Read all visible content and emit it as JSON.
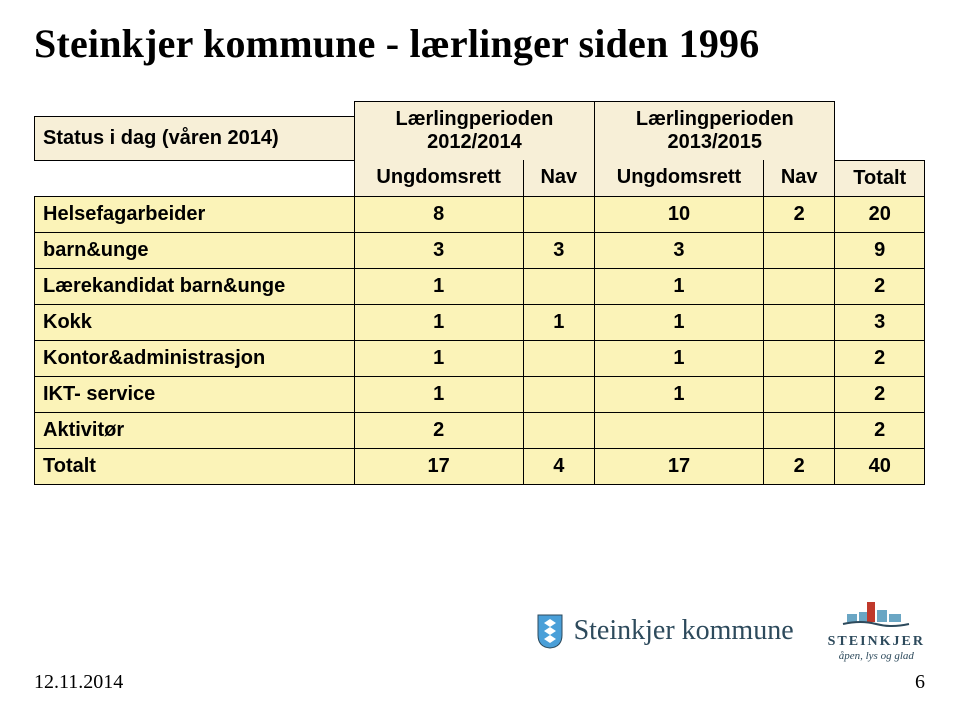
{
  "colors": {
    "header_bg": "#f7efd7",
    "data_bg": "#fbf3b8",
    "border": "#000000",
    "text": "#000000",
    "logo_text": "#2d4a5c",
    "shield_blue": "#4a9fd8",
    "shield_white": "#ffffff"
  },
  "title": "Steinkjer kommune - lærlinger siden 1996",
  "table": {
    "row_header_label": "Status i dag (våren 2014)",
    "period_a": "Lærlingperioden 2012/2014",
    "period_b": "Lærlingperioden 2013/2015",
    "sub_a1": "Ungdomsrett",
    "sub_a2": "Nav",
    "sub_b1": "Ungdomsrett",
    "sub_b2": "Nav",
    "total_col": "Totalt",
    "rows": [
      {
        "label": "Helsefagarbeider",
        "a1": "8",
        "a2": "",
        "b1": "10",
        "b2": "2",
        "tot": "20"
      },
      {
        "label": "barn&unge",
        "a1": "3",
        "a2": "3",
        "b1": "3",
        "b2": "",
        "tot": "9"
      },
      {
        "label": "Lærekandidat barn&unge",
        "a1": "1",
        "a2": "",
        "b1": "1",
        "b2": "",
        "tot": "2"
      },
      {
        "label": "Kokk",
        "a1": "1",
        "a2": "1",
        "b1": "1",
        "b2": "",
        "tot": "3"
      },
      {
        "label": "Kontor&administrasjon",
        "a1": "1",
        "a2": "",
        "b1": "1",
        "b2": "",
        "tot": "2"
      },
      {
        "label": "IKT- service",
        "a1": "1",
        "a2": "",
        "b1": "1",
        "b2": "",
        "tot": "2"
      },
      {
        "label": "Aktivitør",
        "a1": "2",
        "a2": "",
        "b1": "",
        "b2": "",
        "tot": "2"
      },
      {
        "label": "Totalt",
        "a1": "17",
        "a2": "4",
        "b1": "17",
        "b2": "2",
        "tot": "40"
      }
    ]
  },
  "footer": {
    "date": "12.11.2014",
    "page": "6"
  },
  "logo": {
    "brand": "Steinkjer kommune",
    "brand2": "STEINKJER",
    "tagline": "åpen, lys og glad"
  }
}
